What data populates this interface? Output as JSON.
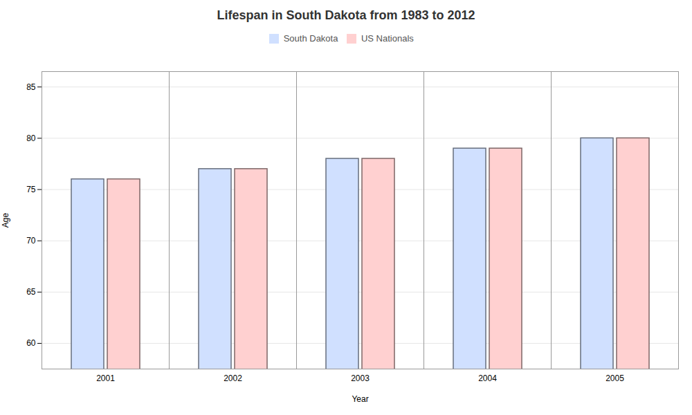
{
  "chart_data": {
    "type": "bar",
    "title": "Lifespan in South Dakota from 1983 to 2012",
    "x_label": "Year",
    "y_label": "Age",
    "categories": [
      "2001",
      "2002",
      "2003",
      "2004",
      "2005"
    ],
    "series": [
      {
        "name": "South Dakota",
        "color": "#d0e0ff",
        "values": [
          76,
          77,
          78,
          79,
          80
        ]
      },
      {
        "name": "US Nationals",
        "color": "#ffd0d0",
        "values": [
          76,
          77,
          78,
          79,
          80
        ]
      }
    ],
    "ylim": [
      57.5,
      86.5
    ],
    "yticks": [
      60,
      65,
      70,
      75,
      80,
      85
    ],
    "grid": true,
    "legend": "top"
  }
}
